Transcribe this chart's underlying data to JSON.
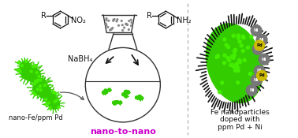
{
  "background_color": "#ffffff",
  "nano_to_nano_color": "#cc00cc",
  "nano_fe_label": "nano-Fe/ppm Pd",
  "nano_to_nano_label": "nano-to-nano",
  "fe_np_label_lines": [
    "Fe nanoparticles",
    "doped with",
    "ppm Pd + Ni"
  ],
  "nabh4_label": "NaBH₄",
  "reactant_label": "NO₂",
  "product_label": "NH₂",
  "green_color": "#33cc00",
  "bright_green": "#44ee00",
  "black_color": "#111111",
  "dark_gray": "#444444",
  "gray_color": "#888888",
  "yellow_color": "#ccbb00",
  "white_color": "#ffffff",
  "light_gray": "#bbbbbb",
  "dashed_line_color": "#aaaaaa",
  "flask_color": "#333333",
  "ni_color": "#777777",
  "pd_color": "#ccbb00"
}
